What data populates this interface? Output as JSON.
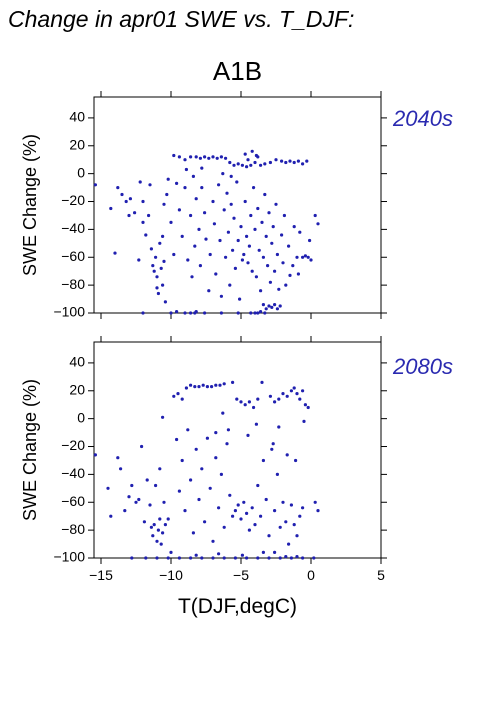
{
  "figure": {
    "title": "Change in apr01 SWE vs. T_DJF:",
    "panel_title": "A1B",
    "xlabel": "T(DJF,degC)"
  },
  "colors": {
    "points": "#2020b0",
    "axis": "#000000",
    "period_label": "#2a2ab0"
  },
  "chart_data": [
    {
      "type": "scatter",
      "title": "A1B",
      "period_label": "2040s",
      "xlabel": "",
      "ylabel": "SWE Change (%)",
      "xlim": [
        -15.5,
        5
      ],
      "ylim": [
        -100,
        55
      ],
      "xticks": [
        -15,
        -10,
        -5,
        0,
        5
      ],
      "yticks": [
        -100,
        -80,
        -60,
        -40,
        -20,
        0,
        20,
        40
      ],
      "show_xtick_labels": false,
      "grid": false,
      "points": [
        [
          -15.4,
          -8
        ],
        [
          -14.3,
          -25
        ],
        [
          -14.0,
          -57
        ],
        [
          -13.8,
          -10
        ],
        [
          -13.5,
          -15
        ],
        [
          -13.2,
          -20
        ],
        [
          -13.0,
          -30
        ],
        [
          -12.9,
          -18
        ],
        [
          -12.6,
          -28
        ],
        [
          -12.3,
          -62
        ],
        [
          -12.2,
          -6
        ],
        [
          -12.0,
          -20
        ],
        [
          -12.0,
          -35
        ],
        [
          -11.8,
          -44
        ],
        [
          -11.6,
          -30
        ],
        [
          -11.5,
          -8
        ],
        [
          -11.3,
          -66
        ],
        [
          -11.2,
          -70
        ],
        [
          -11.0,
          -74
        ],
        [
          -11.0,
          -82
        ],
        [
          -10.9,
          -86
        ],
        [
          -10.7,
          -68
        ],
        [
          -10.6,
          -80
        ],
        [
          -10.5,
          -63
        ],
        [
          -10.4,
          -92
        ],
        [
          -11.4,
          -54
        ],
        [
          -11.1,
          -60
        ],
        [
          -10.8,
          -50
        ],
        [
          -10.6,
          -45
        ],
        [
          -10.5,
          -22
        ],
        [
          -10.3,
          -15
        ],
        [
          -10.2,
          -4
        ],
        [
          -10.0,
          -100
        ],
        [
          -9.6,
          -99
        ],
        [
          -9.0,
          -100
        ],
        [
          -8.6,
          -100
        ],
        [
          -8.2,
          -99
        ],
        [
          -7.6,
          -100
        ],
        [
          -10.0,
          -35
        ],
        [
          -9.8,
          -58
        ],
        [
          -9.6,
          -7
        ],
        [
          -9.4,
          -26
        ],
        [
          -9.2,
          -45
        ],
        [
          -9.0,
          -10
        ],
        [
          -8.8,
          -62
        ],
        [
          -8.6,
          -30
        ],
        [
          -8.5,
          -74
        ],
        [
          -8.3,
          -52
        ],
        [
          -8.2,
          -18
        ],
        [
          -8.0,
          -40
        ],
        [
          -7.9,
          -66
        ],
        [
          -7.8,
          -10
        ],
        [
          -7.6,
          -28
        ],
        [
          -7.5,
          -47
        ],
        [
          -7.3,
          -84
        ],
        [
          -7.2,
          -58
        ],
        [
          -7.0,
          -20
        ],
        [
          -6.9,
          -36
        ],
        [
          -6.8,
          -72
        ],
        [
          -6.6,
          -8
        ],
        [
          -6.5,
          -48
        ],
        [
          -6.4,
          -88
        ],
        [
          -6.2,
          -26
        ],
        [
          -6.1,
          -60
        ],
        [
          -6.0,
          -14
        ],
        [
          -5.9,
          -42
        ],
        [
          -5.8,
          -80
        ],
        [
          -5.7,
          -22
        ],
        [
          -5.6,
          -55
        ],
        [
          -5.5,
          -32
        ],
        [
          -5.4,
          -68
        ],
        [
          -5.3,
          -6
        ],
        [
          -5.2,
          -48
        ],
        [
          -5.1,
          -90
        ],
        [
          -5.0,
          -38
        ],
        [
          -4.9,
          -62
        ],
        [
          -4.8,
          -58
        ],
        [
          -4.7,
          -20
        ],
        [
          -4.6,
          -45
        ],
        [
          -4.5,
          -64
        ],
        [
          -4.4,
          -52
        ],
        [
          -4.3,
          -30
        ],
        [
          -4.2,
          -70
        ],
        [
          -4.1,
          -10
        ],
        [
          -4.0,
          -40
        ],
        [
          -3.9,
          -74
        ],
        [
          -3.8,
          -25
        ],
        [
          -3.7,
          -55
        ],
        [
          -3.6,
          -84
        ],
        [
          -3.5,
          -35
        ],
        [
          -3.4,
          -60
        ],
        [
          -3.3,
          -15
        ],
        [
          -3.2,
          -45
        ],
        [
          -3.1,
          -66
        ],
        [
          -3.0,
          -28
        ],
        [
          -2.9,
          -78
        ],
        [
          -2.8,
          -50
        ],
        [
          -2.7,
          -38
        ],
        [
          -2.6,
          -70
        ],
        [
          -2.5,
          -22
        ],
        [
          -2.4,
          -58
        ],
        [
          -2.3,
          -83
        ],
        [
          -2.1,
          -44
        ],
        [
          -2.0,
          -64
        ],
        [
          -1.9,
          -30
        ],
        [
          -1.8,
          -80
        ],
        [
          -1.6,
          -52
        ],
        [
          -1.5,
          -73
        ],
        [
          -1.3,
          -66
        ],
        [
          -1.2,
          -38
        ],
        [
          -1.0,
          -60
        ],
        [
          -0.9,
          -72
        ],
        [
          -0.8,
          -42
        ],
        [
          -0.6,
          -60
        ],
        [
          -0.4,
          -59
        ],
        [
          -0.2,
          -60
        ],
        [
          -0.1,
          -48
        ],
        [
          0.0,
          -62
        ],
        [
          0.3,
          -30
        ],
        [
          0.5,
          -36
        ],
        [
          -9.8,
          13
        ],
        [
          -9.4,
          12
        ],
        [
          -9.0,
          10
        ],
        [
          -8.6,
          12
        ],
        [
          -8.2,
          12
        ],
        [
          -7.9,
          11
        ],
        [
          -7.6,
          12
        ],
        [
          -7.3,
          11
        ],
        [
          -7.0,
          12
        ],
        [
          -6.7,
          11
        ],
        [
          -6.4,
          12
        ],
        [
          -6.1,
          11
        ],
        [
          -5.8,
          8
        ],
        [
          -5.5,
          6
        ],
        [
          -5.2,
          7
        ],
        [
          -4.9,
          6
        ],
        [
          -4.6,
          5
        ],
        [
          -4.3,
          6
        ],
        [
          -4.0,
          8
        ],
        [
          -3.8,
          12
        ],
        [
          -3.6,
          6
        ],
        [
          -3.3,
          7
        ],
        [
          -2.9,
          8
        ],
        [
          -2.5,
          10
        ],
        [
          -2.1,
          9
        ],
        [
          -1.8,
          8
        ],
        [
          -1.5,
          9
        ],
        [
          -1.2,
          8
        ],
        [
          -0.9,
          9
        ],
        [
          -0.6,
          7
        ],
        [
          -0.3,
          9
        ],
        [
          -8.9,
          3
        ],
        [
          -8.4,
          -2
        ],
        [
          -7.8,
          4
        ],
        [
          -6.3,
          0
        ],
        [
          -5.7,
          -2
        ],
        [
          -4.7,
          14
        ],
        [
          -4.2,
          16
        ],
        [
          -3.9,
          13
        ],
        [
          -4.5,
          10
        ],
        [
          -3.2,
          -97
        ],
        [
          -3.0,
          -95
        ],
        [
          -2.8,
          -96
        ],
        [
          -2.6,
          -94
        ],
        [
          -2.4,
          -97
        ],
        [
          -2.2,
          -95
        ],
        [
          -3.4,
          -94
        ],
        [
          -3.6,
          -99
        ],
        [
          -4.3,
          -100
        ],
        [
          -4.0,
          -100
        ],
        [
          -3.8,
          -100
        ],
        [
          -3.3,
          -100
        ],
        [
          -5.2,
          -100
        ],
        [
          -6.4,
          -100
        ],
        [
          -8.3,
          -100
        ],
        [
          -12.0,
          -100
        ]
      ]
    },
    {
      "type": "scatter",
      "title": "",
      "period_label": "2080s",
      "xlabel": "T(DJF,degC)",
      "ylabel": "SWE Change (%)",
      "xlim": [
        -15.5,
        5
      ],
      "ylim": [
        -100,
        55
      ],
      "xticks": [
        -15,
        -10,
        -5,
        0,
        5
      ],
      "yticks": [
        -100,
        -80,
        -60,
        -40,
        -20,
        0,
        20,
        40
      ],
      "show_xtick_labels": true,
      "grid": false,
      "points": [
        [
          -15.4,
          -26
        ],
        [
          -14.5,
          -50
        ],
        [
          -14.3,
          -70
        ],
        [
          -13.8,
          -28
        ],
        [
          -13.6,
          -36
        ],
        [
          -13.3,
          -66
        ],
        [
          -13.0,
          -56
        ],
        [
          -12.8,
          -48
        ],
        [
          -12.5,
          -60
        ],
        [
          -12.3,
          -58
        ],
        [
          -12.1,
          -20
        ],
        [
          -11.9,
          -74
        ],
        [
          -11.7,
          -44
        ],
        [
          -11.5,
          -62
        ],
        [
          -11.4,
          -78
        ],
        [
          -11.3,
          -84
        ],
        [
          -11.2,
          -76
        ],
        [
          -11.0,
          -88
        ],
        [
          -10.9,
          -80
        ],
        [
          -10.8,
          -72
        ],
        [
          -10.7,
          -90
        ],
        [
          -10.6,
          -82
        ],
        [
          -10.5,
          -60
        ],
        [
          -10.4,
          -76
        ],
        [
          -11.1,
          -48
        ],
        [
          -10.8,
          -36
        ],
        [
          -10.6,
          1
        ],
        [
          -10.2,
          -72
        ],
        [
          -10.0,
          -96
        ],
        [
          -9.6,
          -15
        ],
        [
          -9.4,
          -52
        ],
        [
          -9.2,
          -30
        ],
        [
          -9.0,
          -66
        ],
        [
          -8.8,
          -8
        ],
        [
          -8.6,
          -44
        ],
        [
          -8.4,
          -82
        ],
        [
          -8.2,
          -22
        ],
        [
          -8.0,
          -58
        ],
        [
          -7.8,
          -36
        ],
        [
          -7.6,
          -74
        ],
        [
          -7.4,
          -14
        ],
        [
          -7.2,
          -50
        ],
        [
          -7.0,
          -88
        ],
        [
          -6.8,
          -28
        ],
        [
          -6.6,
          -64
        ],
        [
          -6.4,
          -40
        ],
        [
          -6.2,
          -78
        ],
        [
          -6.0,
          -18
        ],
        [
          -5.8,
          -55
        ],
        [
          -5.6,
          -70
        ],
        [
          -5.4,
          -66
        ],
        [
          -5.2,
          -62
        ],
        [
          -5.0,
          -72
        ],
        [
          -4.8,
          -60
        ],
        [
          -4.6,
          -68
        ],
        [
          -4.4,
          -80
        ],
        [
          -4.2,
          -64
        ],
        [
          -4.0,
          -76
        ],
        [
          -3.8,
          -48
        ],
        [
          -3.6,
          -70
        ],
        [
          -3.4,
          -30
        ],
        [
          -3.2,
          -58
        ],
        [
          -3.0,
          -84
        ],
        [
          -2.8,
          -22
        ],
        [
          -2.6,
          -66
        ],
        [
          -2.4,
          -40
        ],
        [
          -2.2,
          -78
        ],
        [
          -2.0,
          -60
        ],
        [
          -1.8,
          -74
        ],
        [
          -1.6,
          -90
        ],
        [
          -1.4,
          -62
        ],
        [
          -1.2,
          -76
        ],
        [
          -1.0,
          -84
        ],
        [
          -0.8,
          -70
        ],
        [
          -0.6,
          -64
        ],
        [
          0.3,
          -60
        ],
        [
          0.5,
          -66
        ],
        [
          -5.9,
          -8
        ],
        [
          -6.3,
          4
        ],
        [
          -4.5,
          -12
        ],
        [
          -3.9,
          -4
        ],
        [
          -2.7,
          -18
        ],
        [
          -2.3,
          -6
        ],
        [
          -1.7,
          -26
        ],
        [
          -1.1,
          -30
        ],
        [
          -0.5,
          -2
        ],
        [
          -0.2,
          8
        ],
        [
          -6.8,
          -10
        ],
        [
          -9.8,
          16
        ],
        [
          -9.5,
          18
        ],
        [
          -9.2,
          14
        ],
        [
          -8.9,
          22
        ],
        [
          -8.6,
          24
        ],
        [
          -8.3,
          23
        ],
        [
          -8.0,
          23
        ],
        [
          -7.7,
          24
        ],
        [
          -7.4,
          23
        ],
        [
          -7.1,
          23
        ],
        [
          -6.8,
          24
        ],
        [
          -6.5,
          24
        ],
        [
          -6.2,
          25
        ],
        [
          -5.6,
          26
        ],
        [
          -5.3,
          14
        ],
        [
          -5.0,
          12
        ],
        [
          -4.7,
          10
        ],
        [
          -4.4,
          12
        ],
        [
          -4.1,
          8
        ],
        [
          -3.8,
          14
        ],
        [
          -3.5,
          26
        ],
        [
          -2.9,
          16
        ],
        [
          -2.6,
          12
        ],
        [
          -2.3,
          14
        ],
        [
          -2.0,
          18
        ],
        [
          -1.7,
          16
        ],
        [
          -1.4,
          20
        ],
        [
          -1.2,
          22
        ],
        [
          -1.0,
          18
        ],
        [
          -0.8,
          14
        ],
        [
          -0.6,
          20
        ],
        [
          -0.4,
          10
        ],
        [
          -11.8,
          -100
        ],
        [
          -11.0,
          -100
        ],
        [
          -10.2,
          -100
        ],
        [
          -9.4,
          -100
        ],
        [
          -8.6,
          -100
        ],
        [
          -7.8,
          -100
        ],
        [
          -7.0,
          -100
        ],
        [
          -6.2,
          -100
        ],
        [
          -5.4,
          -100
        ],
        [
          -4.6,
          -100
        ],
        [
          -3.8,
          -100
        ],
        [
          -3.0,
          -100
        ],
        [
          -2.2,
          -100
        ],
        [
          -1.4,
          -100
        ],
        [
          -0.6,
          -100
        ],
        [
          0.2,
          -100
        ],
        [
          -12.8,
          -100
        ],
        [
          -1.8,
          -99
        ],
        [
          -3.4,
          -96
        ],
        [
          -4.9,
          -98
        ],
        [
          -6.6,
          -97
        ],
        [
          -8.2,
          -98
        ],
        [
          -2.6,
          -96
        ],
        [
          -1.0,
          -99
        ]
      ]
    }
  ]
}
